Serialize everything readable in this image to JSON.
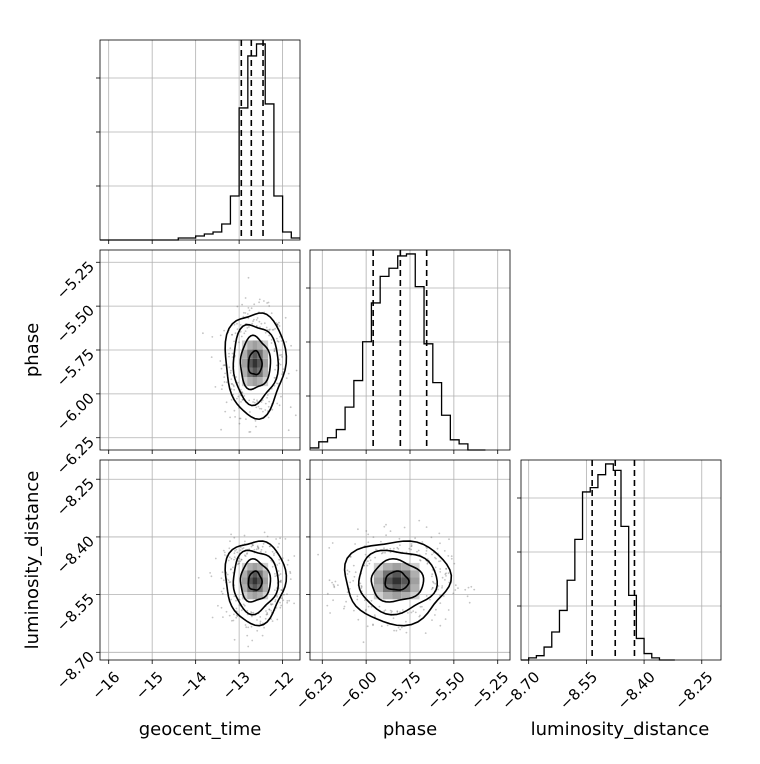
{
  "chart_data": {
    "type": "corner",
    "grid": true,
    "parameters": [
      "geocent_time",
      "phase",
      "luminosity_distance"
    ],
    "axis_labels": {
      "geocent_time": "geocent_time",
      "phase": "phase",
      "luminosity_distance": "luminosity_distance"
    },
    "ranges": {
      "geocent_time": [
        -16.2,
        -11.6
      ],
      "phase": [
        -6.32,
        -5.18
      ],
      "luminosity_distance": [
        -8.72,
        -8.2
      ]
    },
    "ticks": {
      "geocent_time": [
        {
          "v": -16,
          "label": "−16"
        },
        {
          "v": -15,
          "label": "−15"
        },
        {
          "v": -14,
          "label": "−14"
        },
        {
          "v": -13,
          "label": "−13"
        },
        {
          "v": -12,
          "label": "−12"
        }
      ],
      "phase": [
        {
          "v": -6.25,
          "label": "−6.25"
        },
        {
          "v": -6.0,
          "label": "−6.00"
        },
        {
          "v": -5.75,
          "label": "−5.75"
        },
        {
          "v": -5.5,
          "label": "−5.50"
        },
        {
          "v": -5.25,
          "label": "−5.25"
        }
      ],
      "luminosity_distance": [
        {
          "v": -8.7,
          "label": "−8.70"
        },
        {
          "v": -8.55,
          "label": "−8.55"
        },
        {
          "v": -8.4,
          "label": "−8.40"
        },
        {
          "v": -8.25,
          "label": "−8.25"
        }
      ]
    },
    "histograms": {
      "geocent_time": {
        "edges": [
          -16.2,
          -16.0,
          -15.8,
          -15.6,
          -15.4,
          -15.2,
          -15.0,
          -14.8,
          -14.6,
          -14.4,
          -14.2,
          -14.0,
          -13.8,
          -13.6,
          -13.4,
          -13.2,
          -13.0,
          -12.8,
          -12.6,
          -12.4,
          -12.2,
          -12.0,
          -11.8,
          -11.6
        ],
        "counts": [
          0,
          0,
          0,
          0,
          0,
          0,
          0,
          0,
          0,
          1,
          1,
          2,
          3,
          4,
          8,
          22,
          66,
          92,
          98,
          68,
          22,
          4,
          1
        ],
        "quantiles": [
          -12.95,
          -12.72,
          -12.45
        ]
      },
      "phase": {
        "edges": [
          -6.32,
          -6.27,
          -6.22,
          -6.17,
          -6.12,
          -6.07,
          -6.02,
          -5.97,
          -5.92,
          -5.87,
          -5.82,
          -5.77,
          -5.72,
          -5.67,
          -5.62,
          -5.57,
          -5.52,
          -5.47,
          -5.42,
          -5.37,
          -5.32
        ],
        "counts": [
          1,
          4,
          6,
          10,
          21,
          34,
          53,
          72,
          85,
          89,
          95,
          96,
          80,
          52,
          33,
          17,
          5,
          3,
          0,
          0
        ],
        "quantiles": [
          -5.96,
          -5.805,
          -5.655
        ]
      },
      "luminosity_distance": {
        "edges": [
          -8.72,
          -8.7,
          -8.68,
          -8.66,
          -8.64,
          -8.62,
          -8.6,
          -8.58,
          -8.56,
          -8.54,
          -8.52,
          -8.5,
          -8.48,
          -8.46,
          -8.44,
          -8.42,
          -8.4,
          -8.38,
          -8.36,
          -8.34,
          -8.32
        ],
        "counts": [
          0,
          1,
          2,
          6,
          13,
          23,
          37,
          56,
          78,
          80,
          86,
          91,
          88,
          62,
          30,
          10,
          3,
          1,
          0,
          0
        ],
        "quantiles": [
          -8.535,
          -8.475,
          -8.425
        ]
      }
    },
    "correlations": {
      "phase__geocent_time": 0.0,
      "luminosity_distance__geocent_time": 0.0,
      "luminosity_distance__phase": 0.0
    },
    "contour_levels": [
      "1 sigma",
      "1.5 sigma",
      "2 sigma"
    ]
  }
}
